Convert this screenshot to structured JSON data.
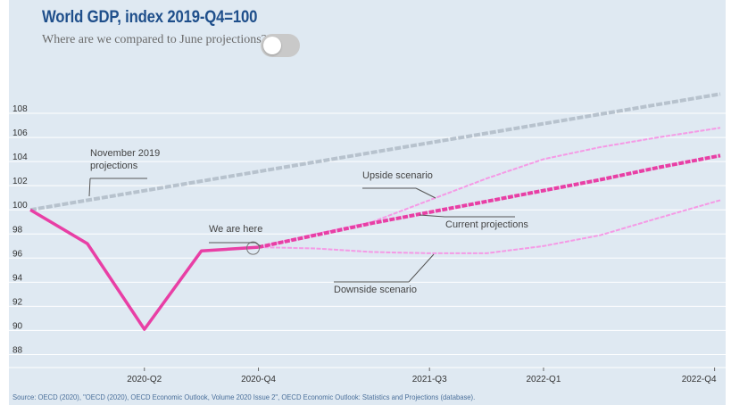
{
  "header": {
    "title": "World GDP, index 2019-Q4=100",
    "subtitle": "Where are we compared to June projections?"
  },
  "footer": {
    "source": "Source: OECD (2020), \"OECD (2020), OECD Economic Outlook, Volume 2020 Issue 2\", OECD Economic Outlook: Statistics and Projections (database)."
  },
  "colors": {
    "background": "#dfe9f2",
    "title": "#1f4f8b",
    "actual": "#e83fa5",
    "current_projection": "#e83fa5",
    "scenarios": "#f59ae6",
    "november_2019": "#b7c2cd",
    "grid": "#ffffff",
    "toggle": "#c9c9c9"
  },
  "chart_data": {
    "type": "line",
    "x_labels": [
      "2020-Q2",
      "2020-Q4",
      "2021-Q3",
      "2022-Q1",
      "2022-Q4"
    ],
    "x_label_index": [
      2,
      4,
      7,
      9,
      12
    ],
    "xlim": [
      0,
      12.1
    ],
    "ylim": [
      87,
      110
    ],
    "y_ticks": [
      88,
      90,
      92,
      94,
      96,
      98,
      100,
      102,
      104,
      106,
      108
    ],
    "grid": true,
    "series": [
      {
        "key": "actual",
        "style": "solid",
        "x": [
          0,
          1,
          2,
          3,
          4
        ],
        "y": [
          100,
          97.2,
          90.1,
          96.6,
          96.9
        ]
      },
      {
        "key": "current",
        "style": "dashed",
        "x": [
          4,
          5,
          6,
          7,
          8,
          9,
          10,
          11,
          12.1
        ],
        "y": [
          96.9,
          97.9,
          98.9,
          99.8,
          100.7,
          101.6,
          102.5,
          103.5,
          104.5
        ]
      },
      {
        "key": "upside",
        "style": "dashed",
        "x": [
          4,
          5,
          6,
          7,
          8,
          9,
          10,
          11,
          12.1
        ],
        "y": [
          96.9,
          98.0,
          99.0,
          100.8,
          102.6,
          104.2,
          105.2,
          106.0,
          106.8
        ]
      },
      {
        "key": "downside",
        "style": "dashed",
        "x": [
          4,
          5,
          6,
          7,
          8,
          9,
          10,
          11,
          12.1
        ],
        "y": [
          96.9,
          96.8,
          96.5,
          96.4,
          96.4,
          97.0,
          97.9,
          99.3,
          100.8
        ]
      },
      {
        "key": "november",
        "style": "dashed",
        "x": [
          0,
          12.1
        ],
        "y": [
          100,
          109.6
        ]
      }
    ],
    "annotations": [
      {
        "lines": [
          "November 2019",
          "projections"
        ]
      },
      {
        "lines": [
          "Upside scenario"
        ]
      },
      {
        "lines": [
          "Current projections"
        ]
      },
      {
        "lines": [
          "We are here"
        ]
      },
      {
        "lines": [
          "Downside scenario"
        ]
      }
    ]
  }
}
